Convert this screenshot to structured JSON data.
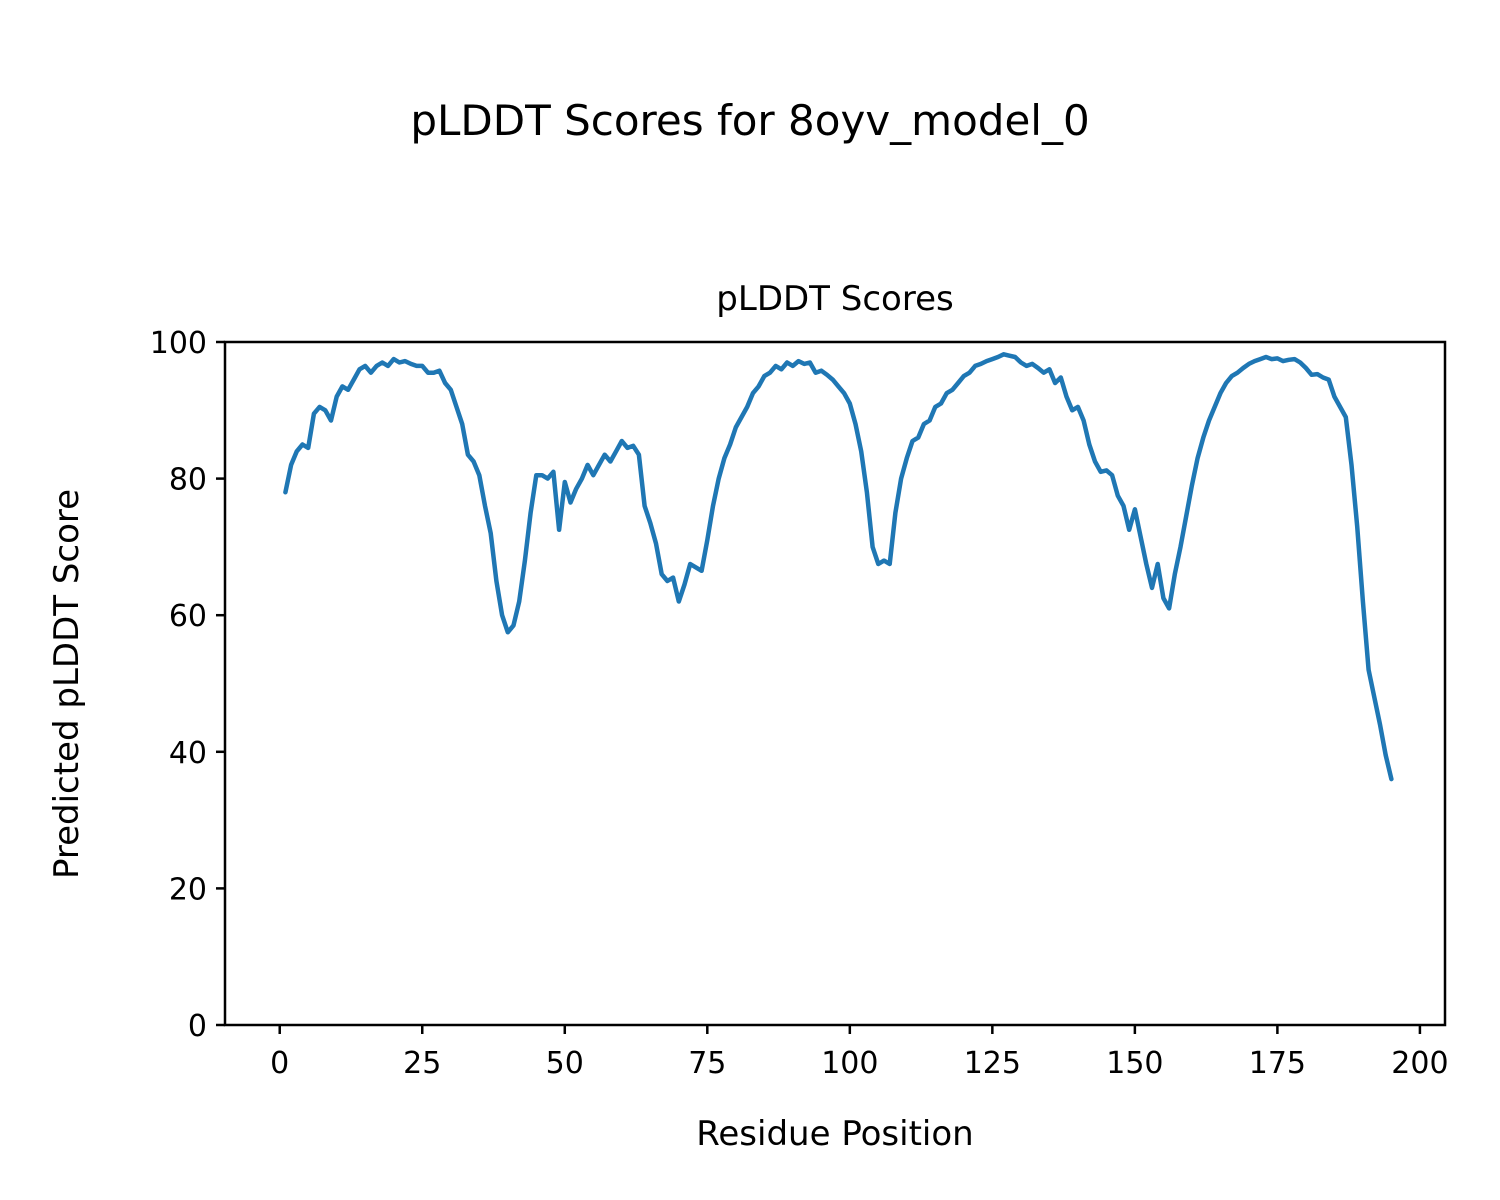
{
  "figure": {
    "suptitle": "pLDDT Scores for 8oyv_model_0",
    "axes_title": "pLDDT Scores",
    "xlabel": "Residue Position",
    "ylabel": "Predicted pLDDT Score"
  },
  "chart_data": {
    "type": "line",
    "title": "pLDDT Scores",
    "suptitle": "pLDDT Scores for 8oyv_model_0",
    "xlabel": "Residue Position",
    "ylabel": "Predicted pLDDT Score",
    "line_color": "#1f77b4",
    "grid": false,
    "legend": null,
    "xticks": [
      0,
      25,
      50,
      75,
      100,
      125,
      150,
      175,
      200
    ],
    "yticks": [
      0,
      20,
      40,
      60,
      80,
      100
    ],
    "xlim": [
      -9.6,
      204.4
    ],
    "ylim": [
      0,
      100
    ],
    "x_start": 1,
    "values": [
      78,
      82,
      84,
      85,
      84.5,
      89.5,
      90.5,
      90,
      88.5,
      92,
      93.5,
      93,
      94.5,
      96,
      96.5,
      95.5,
      96.5,
      97,
      96.5,
      97.5,
      97,
      97.2,
      96.8,
      96.5,
      96.5,
      95.5,
      95.5,
      95.8,
      94,
      93,
      90.5,
      88,
      83.5,
      82.5,
      80.5,
      76,
      72,
      65,
      60,
      57.5,
      58.5,
      62,
      68,
      75,
      80.5,
      80.5,
      80,
      81,
      72.5,
      79.5,
      76.5,
      78.5,
      80,
      82,
      80.5,
      82,
      83.5,
      82.5,
      84,
      85.5,
      84.5,
      84.8,
      83.5,
      76,
      73.5,
      70.5,
      66,
      65,
      65.5,
      62,
      64.5,
      67.5,
      67,
      66.5,
      71,
      76,
      80,
      83,
      85,
      87.5,
      89,
      90.5,
      92.5,
      93.5,
      95,
      95.5,
      96.5,
      96,
      97,
      96.5,
      97.2,
      96.8,
      97,
      95.5,
      95.8,
      95.2,
      94.5,
      93.5,
      92.5,
      91,
      88,
      84,
      78,
      70,
      67.5,
      68,
      67.5,
      75,
      80,
      83,
      85.5,
      86,
      88,
      88.5,
      90.5,
      91,
      92.5,
      93,
      94,
      95,
      95.5,
      96.5,
      96.8,
      97.2,
      97.5,
      97.8,
      98.2,
      98,
      97.8,
      97,
      96.5,
      96.8,
      96.2,
      95.5,
      96,
      94,
      94.8,
      92,
      90,
      90.5,
      88.5,
      85,
      82.5,
      81,
      81.2,
      80.5,
      77.5,
      76,
      72.5,
      75.5,
      71.5,
      67.5,
      64,
      67.5,
      62.5,
      61,
      66,
      70,
      74.5,
      79,
      83,
      86,
      88.5,
      90.5,
      92.5,
      94,
      95,
      95.5,
      96.2,
      96.8,
      97.2,
      97.5,
      97.8,
      97.5,
      97.6,
      97.2,
      97.4,
      97.5,
      97,
      96.2,
      95.2,
      95.3,
      94.8,
      94.5,
      92,
      90.5,
      89,
      82,
      73,
      62,
      52,
      48,
      44,
      39.5,
      36
    ]
  }
}
